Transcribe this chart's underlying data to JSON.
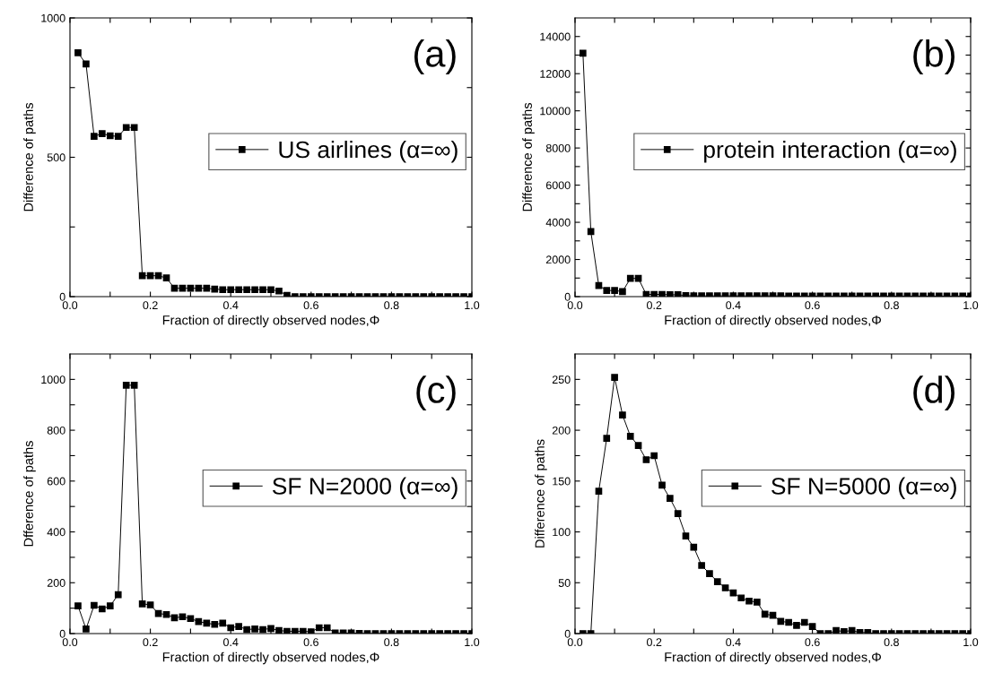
{
  "chart_data": [
    {
      "type": "line",
      "xlabel": "Fraction of directly observed nodes,Φ",
      "ylabel": "Difference of paths",
      "annotations": [
        "(a)"
      ],
      "x": [
        0.02,
        0.04,
        0.06,
        0.08,
        0.1,
        0.12,
        0.14,
        0.16,
        0.18,
        0.2,
        0.22,
        0.24,
        0.26,
        0.28,
        0.3,
        0.32,
        0.34,
        0.36,
        0.38,
        0.4,
        0.42,
        0.44,
        0.46,
        0.48,
        0.5,
        0.52,
        0.54,
        0.56,
        0.58,
        0.6,
        0.62,
        0.64,
        0.66,
        0.68,
        0.7,
        0.72,
        0.74,
        0.76,
        0.78,
        0.8,
        0.82,
        0.84,
        0.86,
        0.88,
        0.9,
        0.92,
        0.94,
        0.96,
        0.98,
        1.0
      ],
      "series": [
        {
          "name": "US airlines (α=∞)",
          "color": "#000000",
          "values": [
            875,
            835,
            575,
            585,
            577,
            575,
            607,
            607,
            75,
            75,
            75,
            67,
            30,
            30,
            30,
            30,
            30,
            27,
            25,
            25,
            25,
            25,
            25,
            25,
            25,
            20,
            5,
            0,
            0,
            0,
            0,
            0,
            0,
            0,
            0,
            0,
            0,
            0,
            0,
            0,
            0,
            0,
            0,
            0,
            0,
            0,
            0,
            0,
            0,
            0
          ]
        }
      ],
      "xlim": [
        0,
        1
      ],
      "xticks": [
        {
          "value": 0,
          "label": "0.0"
        },
        {
          "value": 0.1,
          "label": null
        },
        0.2,
        {
          "value": 0.3,
          "label": null
        },
        0.4,
        {
          "value": 0.5,
          "label": null
        },
        0.6,
        {
          "value": 0.7,
          "label": null
        },
        0.8,
        {
          "value": 0.9,
          "label": null
        },
        {
          "value": 1,
          "label": "1.0"
        }
      ],
      "ylim": [
        0,
        1000
      ],
      "yticks": [
        0,
        {
          "value": 250,
          "label": null
        },
        500,
        {
          "value": 750,
          "label": null
        },
        1000
      ],
      "legend": "right",
      "marker": "square",
      "line_style": "solid",
      "grid": false
    },
    {
      "type": "line",
      "xlabel": "Fraction of directly observed nodes,Φ",
      "ylabel": "Difference of paths",
      "annotations": [
        "(b)"
      ],
      "x": [
        0.02,
        0.04,
        0.06,
        0.08,
        0.1,
        0.12,
        0.14,
        0.16,
        0.18,
        0.2,
        0.22,
        0.24,
        0.26,
        0.28,
        0.3,
        0.32,
        0.34,
        0.36,
        0.38,
        0.4,
        0.42,
        0.44,
        0.46,
        0.48,
        0.5,
        0.52,
        0.54,
        0.56,
        0.58,
        0.6,
        0.62,
        0.64,
        0.66,
        0.68,
        0.7,
        0.72,
        0.74,
        0.76,
        0.78,
        0.8,
        0.82,
        0.84,
        0.86,
        0.88,
        0.9,
        0.92,
        0.94,
        0.96,
        0.98,
        1.0
      ],
      "series": [
        {
          "name": "protein interaction (α=∞)",
          "color": "#000000",
          "values": [
            13100,
            3500,
            600,
            330,
            330,
            270,
            980,
            980,
            120,
            120,
            120,
            100,
            100,
            60,
            40,
            40,
            40,
            40,
            40,
            40,
            40,
            40,
            40,
            40,
            40,
            40,
            30,
            30,
            30,
            30,
            30,
            30,
            30,
            30,
            30,
            30,
            30,
            30,
            30,
            30,
            30,
            30,
            30,
            30,
            30,
            30,
            30,
            30,
            30,
            30
          ]
        }
      ],
      "xlim": [
        0,
        1
      ],
      "xticks": [
        {
          "value": 0,
          "label": "0.0"
        },
        {
          "value": 0.1,
          "label": null
        },
        0.2,
        {
          "value": 0.3,
          "label": null
        },
        0.4,
        {
          "value": 0.5,
          "label": null
        },
        0.6,
        {
          "value": 0.7,
          "label": null
        },
        0.8,
        {
          "value": 0.9,
          "label": null
        },
        {
          "value": 1,
          "label": "1.0"
        }
      ],
      "ylim": [
        0,
        15000
      ],
      "yticks": [
        0,
        {
          "value": 1000,
          "label": null
        },
        2000,
        {
          "value": 3000,
          "label": null
        },
        4000,
        {
          "value": 5000,
          "label": null
        },
        6000,
        {
          "value": 7000,
          "label": null
        },
        8000,
        {
          "value": 9000,
          "label": null
        },
        10000,
        {
          "value": 11000,
          "label": null
        },
        12000,
        {
          "value": 13000,
          "label": null
        },
        14000
      ],
      "legend": "right",
      "marker": "square",
      "line_style": "solid",
      "grid": false
    },
    {
      "type": "line",
      "xlabel": "Fraction of directly observed nodes,Φ",
      "ylabel": "Dfference of paths",
      "annotations": [
        "(c)"
      ],
      "x": [
        0.02,
        0.04,
        0.06,
        0.08,
        0.1,
        0.12,
        0.14,
        0.16,
        0.18,
        0.2,
        0.22,
        0.24,
        0.26,
        0.28,
        0.3,
        0.32,
        0.34,
        0.36,
        0.38,
        0.4,
        0.42,
        0.44,
        0.46,
        0.48,
        0.5,
        0.52,
        0.54,
        0.56,
        0.58,
        0.6,
        0.62,
        0.64,
        0.66,
        0.68,
        0.7,
        0.72,
        0.74,
        0.76,
        0.78,
        0.8,
        0.82,
        0.84,
        0.86,
        0.88,
        0.9,
        0.92,
        0.94,
        0.96,
        0.98,
        1.0
      ],
      "series": [
        {
          "name": "SF N=2000 (α=∞)",
          "color": "#000000",
          "values": [
            109,
            18,
            111,
            97,
            109,
            153,
            977,
            977,
            117,
            113,
            79,
            75,
            62,
            66,
            59,
            47,
            41,
            36,
            41,
            23,
            28,
            16,
            18,
            16,
            20,
            12,
            9,
            9,
            9,
            7,
            23,
            23,
            2,
            2,
            2,
            1,
            0,
            0,
            0,
            0,
            0,
            0,
            0,
            0,
            0,
            0,
            0,
            0,
            0,
            0
          ]
        }
      ],
      "xlim": [
        0,
        1
      ],
      "xticks": [
        {
          "value": 0,
          "label": "0.0"
        },
        {
          "value": 0.1,
          "label": null
        },
        0.2,
        {
          "value": 0.3,
          "label": null
        },
        0.4,
        {
          "value": 0.5,
          "label": null
        },
        0.6,
        {
          "value": 0.7,
          "label": null
        },
        0.8,
        {
          "value": 0.9,
          "label": null
        },
        {
          "value": 1,
          "label": "1.0"
        }
      ],
      "ylim": [
        0,
        1100
      ],
      "yticks": [
        0,
        {
          "value": 100,
          "label": null
        },
        200,
        {
          "value": 300,
          "label": null
        },
        400,
        {
          "value": 500,
          "label": null
        },
        600,
        {
          "value": 700,
          "label": null
        },
        800,
        {
          "value": 900,
          "label": null
        },
        1000
      ],
      "legend": "right",
      "marker": "square",
      "line_style": "solid",
      "grid": false
    },
    {
      "type": "line",
      "xlabel": "Fraction of directly observed nodes,Φ",
      "ylabel": "Difference of paths",
      "annotations": [
        "(d)"
      ],
      "x": [
        0.02,
        0.04,
        0.06,
        0.08,
        0.1,
        0.12,
        0.14,
        0.16,
        0.18,
        0.2,
        0.22,
        0.24,
        0.26,
        0.28,
        0.3,
        0.32,
        0.34,
        0.36,
        0.38,
        0.4,
        0.42,
        0.44,
        0.46,
        0.48,
        0.5,
        0.52,
        0.54,
        0.56,
        0.58,
        0.6,
        0.62,
        0.64,
        0.66,
        0.68,
        0.7,
        0.72,
        0.74,
        0.76,
        0.78,
        0.8,
        0.82,
        0.84,
        0.86,
        0.88,
        0.9,
        0.92,
        0.94,
        0.96,
        0.98,
        1.0
      ],
      "series": [
        {
          "name": "SF N=5000 (α=∞)",
          "color": "#000000",
          "values": [
            0,
            0,
            140,
            192,
            252,
            215,
            194,
            185,
            171,
            175,
            146,
            133,
            118,
            96,
            85,
            67,
            59,
            51,
            45,
            40,
            35,
            32,
            31,
            19,
            18,
            12,
            11,
            8,
            11,
            7,
            0,
            0,
            3,
            2,
            3,
            1,
            1,
            0,
            0,
            0,
            0,
            0,
            0,
            0,
            0,
            0,
            0,
            0,
            0,
            0
          ]
        }
      ],
      "xlim": [
        0,
        1
      ],
      "xticks": [
        {
          "value": 0,
          "label": "0.0"
        },
        {
          "value": 0.1,
          "label": null
        },
        0.2,
        {
          "value": 0.3,
          "label": null
        },
        0.4,
        {
          "value": 0.5,
          "label": null
        },
        0.6,
        {
          "value": 0.7,
          "label": null
        },
        0.8,
        {
          "value": 0.9,
          "label": null
        },
        {
          "value": 1,
          "label": "1.0"
        }
      ],
      "ylim": [
        0,
        275
      ],
      "yticks": [
        0,
        {
          "value": 25,
          "label": null
        },
        50,
        {
          "value": 75,
          "label": null
        },
        100,
        {
          "value": 125,
          "label": null
        },
        150,
        {
          "value": 175,
          "label": null
        },
        200,
        {
          "value": 225,
          "label": null
        },
        250
      ],
      "legend": "right",
      "marker": "square",
      "line_style": "solid",
      "grid": false
    }
  ]
}
